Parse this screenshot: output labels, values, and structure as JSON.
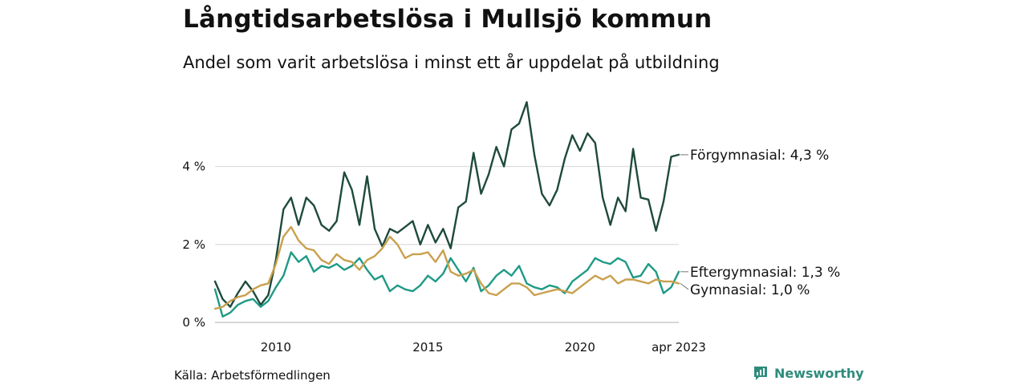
{
  "header": {
    "title": "Långtidsarbetslösa i Mullsjö kommun",
    "subtitle": "Andel som varit arbetslösa i minst ett år uppdelat på utbildning"
  },
  "footer": {
    "source": "Källa: Arbetsförmedlingen",
    "brand": "Newsworthy",
    "brand_icon": "bar-chart-speech-bubble-icon",
    "brand_color": "#2f8c7c"
  },
  "chart_data": {
    "type": "line",
    "x_unit": "month",
    "x_range": [
      "2008-01",
      "2023-04"
    ],
    "ylim": [
      0,
      5.8
    ],
    "yticks": [
      0,
      2,
      4
    ],
    "ytick_labels": [
      "0 %",
      "2 %",
      "4 %"
    ],
    "xticks": [
      {
        "date": "2010-01",
        "label": "2010"
      },
      {
        "date": "2015-01",
        "label": "2015"
      },
      {
        "date": "2020-01",
        "label": "2020"
      },
      {
        "date": "2023-04",
        "label": "apr 2023"
      }
    ],
    "grid": true,
    "series": [
      {
        "name": "Förgymnasial",
        "end_label": "Förgymnasial: 4,3 %",
        "color": "#1e4a3c",
        "points": [
          [
            "2008-01",
            1.05
          ],
          [
            "2008-04",
            0.6
          ],
          [
            "2008-07",
            0.4
          ],
          [
            "2008-10",
            0.75
          ],
          [
            "2009-01",
            1.05
          ],
          [
            "2009-04",
            0.8
          ],
          [
            "2009-07",
            0.45
          ],
          [
            "2009-10",
            0.7
          ],
          [
            "2010-01",
            1.6
          ],
          [
            "2010-04",
            2.9
          ],
          [
            "2010-07",
            3.2
          ],
          [
            "2010-10",
            2.5
          ],
          [
            "2011-01",
            3.2
          ],
          [
            "2011-04",
            3.0
          ],
          [
            "2011-07",
            2.5
          ],
          [
            "2011-10",
            2.35
          ],
          [
            "2012-01",
            2.6
          ],
          [
            "2012-04",
            3.85
          ],
          [
            "2012-07",
            3.4
          ],
          [
            "2012-10",
            2.5
          ],
          [
            "2013-01",
            3.75
          ],
          [
            "2013-04",
            2.4
          ],
          [
            "2013-07",
            1.95
          ],
          [
            "2013-10",
            2.4
          ],
          [
            "2014-01",
            2.3
          ],
          [
            "2014-04",
            2.45
          ],
          [
            "2014-07",
            2.6
          ],
          [
            "2014-10",
            2.0
          ],
          [
            "2015-01",
            2.5
          ],
          [
            "2015-04",
            2.05
          ],
          [
            "2015-07",
            2.4
          ],
          [
            "2015-10",
            1.9
          ],
          [
            "2016-01",
            2.95
          ],
          [
            "2016-04",
            3.1
          ],
          [
            "2016-07",
            4.35
          ],
          [
            "2016-10",
            3.3
          ],
          [
            "2017-01",
            3.8
          ],
          [
            "2017-04",
            4.5
          ],
          [
            "2017-07",
            4.0
          ],
          [
            "2017-10",
            4.95
          ],
          [
            "2018-01",
            5.1
          ],
          [
            "2018-04",
            5.65
          ],
          [
            "2018-07",
            4.3
          ],
          [
            "2018-10",
            3.3
          ],
          [
            "2019-01",
            3.0
          ],
          [
            "2019-04",
            3.4
          ],
          [
            "2019-07",
            4.2
          ],
          [
            "2019-10",
            4.8
          ],
          [
            "2020-01",
            4.4
          ],
          [
            "2020-04",
            4.85
          ],
          [
            "2020-07",
            4.6
          ],
          [
            "2020-10",
            3.2
          ],
          [
            "2021-01",
            2.5
          ],
          [
            "2021-04",
            3.2
          ],
          [
            "2021-07",
            2.85
          ],
          [
            "2021-10",
            4.45
          ],
          [
            "2022-01",
            3.2
          ],
          [
            "2022-04",
            3.15
          ],
          [
            "2022-07",
            2.35
          ],
          [
            "2022-10",
            3.1
          ],
          [
            "2023-01",
            4.25
          ],
          [
            "2023-04",
            4.3
          ]
        ]
      },
      {
        "name": "Eftergymnasial",
        "end_label": "Eftergymnasial: 1,3 %",
        "color": "#1f9a86",
        "points": [
          [
            "2008-01",
            0.85
          ],
          [
            "2008-04",
            0.15
          ],
          [
            "2008-07",
            0.25
          ],
          [
            "2008-10",
            0.45
          ],
          [
            "2009-01",
            0.55
          ],
          [
            "2009-04",
            0.6
          ],
          [
            "2009-07",
            0.4
          ],
          [
            "2009-10",
            0.55
          ],
          [
            "2010-01",
            0.9
          ],
          [
            "2010-04",
            1.2
          ],
          [
            "2010-07",
            1.8
          ],
          [
            "2010-10",
            1.55
          ],
          [
            "2011-01",
            1.7
          ],
          [
            "2011-04",
            1.3
          ],
          [
            "2011-07",
            1.45
          ],
          [
            "2011-10",
            1.4
          ],
          [
            "2012-01",
            1.5
          ],
          [
            "2012-04",
            1.35
          ],
          [
            "2012-07",
            1.45
          ],
          [
            "2012-10",
            1.65
          ],
          [
            "2013-01",
            1.35
          ],
          [
            "2013-04",
            1.1
          ],
          [
            "2013-07",
            1.2
          ],
          [
            "2013-10",
            0.8
          ],
          [
            "2014-01",
            0.95
          ],
          [
            "2014-04",
            0.85
          ],
          [
            "2014-07",
            0.8
          ],
          [
            "2014-10",
            0.95
          ],
          [
            "2015-01",
            1.2
          ],
          [
            "2015-04",
            1.05
          ],
          [
            "2015-07",
            1.25
          ],
          [
            "2015-10",
            1.65
          ],
          [
            "2016-01",
            1.35
          ],
          [
            "2016-04",
            1.05
          ],
          [
            "2016-07",
            1.4
          ],
          [
            "2016-10",
            0.8
          ],
          [
            "2017-01",
            0.95
          ],
          [
            "2017-04",
            1.2
          ],
          [
            "2017-07",
            1.35
          ],
          [
            "2017-10",
            1.2
          ],
          [
            "2018-01",
            1.45
          ],
          [
            "2018-04",
            1.0
          ],
          [
            "2018-07",
            0.9
          ],
          [
            "2018-10",
            0.85
          ],
          [
            "2019-01",
            0.95
          ],
          [
            "2019-04",
            0.9
          ],
          [
            "2019-07",
            0.75
          ],
          [
            "2019-10",
            1.05
          ],
          [
            "2020-01",
            1.2
          ],
          [
            "2020-04",
            1.35
          ],
          [
            "2020-07",
            1.65
          ],
          [
            "2020-10",
            1.55
          ],
          [
            "2021-01",
            1.5
          ],
          [
            "2021-04",
            1.65
          ],
          [
            "2021-07",
            1.55
          ],
          [
            "2021-10",
            1.15
          ],
          [
            "2022-01",
            1.2
          ],
          [
            "2022-04",
            1.5
          ],
          [
            "2022-07",
            1.3
          ],
          [
            "2022-10",
            0.75
          ],
          [
            "2023-01",
            0.9
          ],
          [
            "2023-04",
            1.3
          ]
        ]
      },
      {
        "name": "Gymnasial",
        "end_label": "Gymnasial: 1,0 %",
        "color": "#c9a04e",
        "points": [
          [
            "2008-01",
            0.35
          ],
          [
            "2008-04",
            0.4
          ],
          [
            "2008-07",
            0.55
          ],
          [
            "2008-10",
            0.65
          ],
          [
            "2009-01",
            0.7
          ],
          [
            "2009-04",
            0.85
          ],
          [
            "2009-07",
            0.95
          ],
          [
            "2009-10",
            1.0
          ],
          [
            "2010-01",
            1.5
          ],
          [
            "2010-04",
            2.2
          ],
          [
            "2010-07",
            2.45
          ],
          [
            "2010-10",
            2.1
          ],
          [
            "2011-01",
            1.9
          ],
          [
            "2011-04",
            1.85
          ],
          [
            "2011-07",
            1.6
          ],
          [
            "2011-10",
            1.5
          ],
          [
            "2012-01",
            1.75
          ],
          [
            "2012-04",
            1.6
          ],
          [
            "2012-07",
            1.55
          ],
          [
            "2012-10",
            1.35
          ],
          [
            "2013-01",
            1.6
          ],
          [
            "2013-04",
            1.7
          ],
          [
            "2013-07",
            1.9
          ],
          [
            "2013-10",
            2.2
          ],
          [
            "2014-01",
            2.0
          ],
          [
            "2014-04",
            1.65
          ],
          [
            "2014-07",
            1.75
          ],
          [
            "2014-10",
            1.75
          ],
          [
            "2015-01",
            1.8
          ],
          [
            "2015-04",
            1.55
          ],
          [
            "2015-07",
            1.85
          ],
          [
            "2015-10",
            1.3
          ],
          [
            "2016-01",
            1.2
          ],
          [
            "2016-04",
            1.25
          ],
          [
            "2016-07",
            1.35
          ],
          [
            "2016-10",
            1.0
          ],
          [
            "2017-01",
            0.75
          ],
          [
            "2017-04",
            0.7
          ],
          [
            "2017-07",
            0.85
          ],
          [
            "2017-10",
            1.0
          ],
          [
            "2018-01",
            1.0
          ],
          [
            "2018-04",
            0.9
          ],
          [
            "2018-07",
            0.7
          ],
          [
            "2018-10",
            0.75
          ],
          [
            "2019-01",
            0.8
          ],
          [
            "2019-04",
            0.85
          ],
          [
            "2019-07",
            0.8
          ],
          [
            "2019-10",
            0.75
          ],
          [
            "2020-01",
            0.9
          ],
          [
            "2020-04",
            1.05
          ],
          [
            "2020-07",
            1.2
          ],
          [
            "2020-10",
            1.1
          ],
          [
            "2021-01",
            1.2
          ],
          [
            "2021-04",
            1.0
          ],
          [
            "2021-07",
            1.1
          ],
          [
            "2021-10",
            1.1
          ],
          [
            "2022-01",
            1.05
          ],
          [
            "2022-04",
            1.0
          ],
          [
            "2022-07",
            1.1
          ],
          [
            "2022-10",
            1.05
          ],
          [
            "2023-01",
            1.05
          ],
          [
            "2023-04",
            1.0
          ]
        ]
      }
    ]
  }
}
